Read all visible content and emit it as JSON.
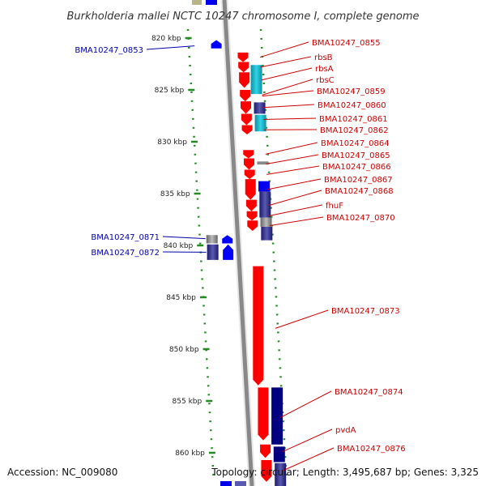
{
  "title": "Burkholderia mallei NCTC 10247 chromosome I, complete genome",
  "accession": "Accession: NC_009080",
  "topology": "Topology: circular; Length: 3,495,687 bp; Genes: 3,325",
  "colors": {
    "forward_strand": "#ff0000",
    "reverse_strand": "#0000ff",
    "forward_label": "#cc0000",
    "reverse_label": "#0000aa",
    "tick": "#228b22",
    "backbone": "#888888"
  },
  "ticks": [
    {
      "kbp": 820,
      "label": "820 kbp"
    },
    {
      "kbp": 825,
      "label": "825 kbp"
    },
    {
      "kbp": 830,
      "label": "830 kbp"
    },
    {
      "kbp": 835,
      "label": "835 kbp"
    },
    {
      "kbp": 840,
      "label": "840 kbp"
    },
    {
      "kbp": 845,
      "label": "845 kbp"
    },
    {
      "kbp": 850,
      "label": "850 kbp"
    },
    {
      "kbp": 855,
      "label": "855 kbp"
    },
    {
      "kbp": 860,
      "label": "860 kbp"
    }
  ],
  "genes_left": [
    {
      "name": "BMA10247_0853",
      "start_kbp": 820.4,
      "end_kbp": 821.1
    },
    {
      "name": "BMA10247_0871",
      "start_kbp": 838.9,
      "end_kbp": 839.8
    },
    {
      "name": "BMA10247_0872",
      "start_kbp": 839.8,
      "end_kbp": 841.5
    }
  ],
  "genes_right": [
    {
      "name": "BMA10247_0855",
      "start_kbp": 821.4,
      "end_kbp": 822.3
    },
    {
      "name": "rbsB",
      "start_kbp": 822.3,
      "end_kbp": 823.3
    },
    {
      "name": "rbsA",
      "start_kbp": 823.3,
      "end_kbp": 824.8
    },
    {
      "name": "rbsC",
      "start_kbp": 824.8,
      "end_kbp": 826.2
    },
    {
      "name": "BMA10247_0859",
      "start_kbp": 825.1,
      "end_kbp": 826.1
    },
    {
      "name": "BMA10247_0860",
      "start_kbp": 826.1,
      "end_kbp": 827.3
    },
    {
      "name": "BMA10247_0861",
      "start_kbp": 827.3,
      "end_kbp": 828.4
    },
    {
      "name": "BMA10247_0862",
      "start_kbp": 828.4,
      "end_kbp": 829.3
    },
    {
      "name": "BMA10247_0864",
      "start_kbp": 830.8,
      "end_kbp": 831.6
    },
    {
      "name": "BMA10247_0865",
      "start_kbp": 831.6,
      "end_kbp": 832.7
    },
    {
      "name": "BMA10247_0866",
      "start_kbp": 832.7,
      "end_kbp": 833.6
    },
    {
      "name": "BMA10247_0867",
      "start_kbp": 833.6,
      "end_kbp": 835.6
    },
    {
      "name": "BMA10247_0868",
      "start_kbp": 835.6,
      "end_kbp": 836.7
    },
    {
      "name": "fhuF",
      "start_kbp": 836.7,
      "end_kbp": 837.6
    },
    {
      "name": "BMA10247_0870",
      "start_kbp": 837.6,
      "end_kbp": 838.6
    },
    {
      "name": "BMA10247_0873",
      "start_kbp": 842.0,
      "end_kbp": 854.0
    },
    {
      "name": "BMA10247_0874",
      "start_kbp": 854.0,
      "end_kbp": 859.2
    },
    {
      "name": "pvdA",
      "start_kbp": 859.2,
      "end_kbp": 860.6
    },
    {
      "name": "BMA10247_0876",
      "start_kbp": 860.6,
      "end_kbp": 862.8
    }
  ]
}
